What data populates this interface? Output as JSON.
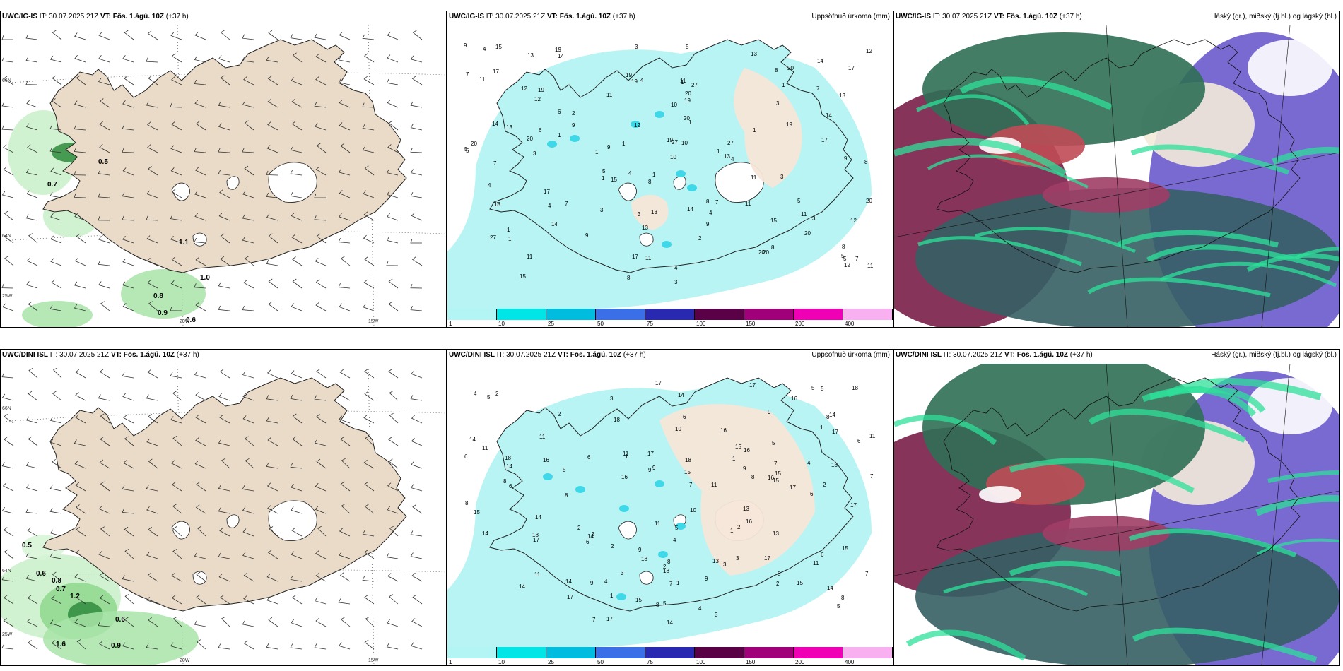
{
  "panels": [
    {
      "model": "UWC/IG-IS",
      "it_label": "IT:",
      "it": "30.07.2025 21Z",
      "vt_label": "VT:",
      "vt": "Fös. 1.ágú. 10Z",
      "lead": "(+37 h)",
      "right_title": ""
    },
    {
      "model": "UWC/IG-IS",
      "it_label": "IT:",
      "it": "30.07.2025 21Z",
      "vt_label": "VT:",
      "vt": "Fös. 1.ágú. 10Z",
      "lead": "(+37 h)",
      "right_title": "Uppsöfnuð úrkoma (mm)"
    },
    {
      "model": "UWC/IG-IS",
      "it_label": "IT:",
      "it": "30.07.2025 21Z",
      "vt_label": "VT:",
      "vt": "Fös. 1.ágú. 10Z",
      "lead": "(+37 h)",
      "right_title": "Háský (gr.), miðský (fj.bl.) og lágský (bl.)"
    },
    {
      "model": "UWC/DINI ISL",
      "it_label": "IT:",
      "it": "30.07.2025 21Z",
      "vt_label": "VT:",
      "vt": "Fös. 1.ágú. 10Z",
      "lead": "(+37 h)",
      "right_title": ""
    },
    {
      "model": "UWC/DINI ISL",
      "it_label": "IT:",
      "it": "30.07.2025 21Z",
      "vt_label": "VT:",
      "vt": "Fös. 1.ágú. 10Z",
      "lead": "(+37 h)",
      "right_title": "Uppsöfnuð úrkoma (mm)"
    },
    {
      "model": "UWC/DINI ISL",
      "it_label": "IT:",
      "it": "30.07.2025 21Z",
      "vt_label": "VT:",
      "vt": "Fös. 1.ágú. 10Z",
      "lead": "(+37 h)",
      "right_title": "Háský (gr.), miðský (fj.bl.) og lágský (bl.)"
    }
  ],
  "colorbar": {
    "labels": [
      "1",
      "10",
      "25",
      "50",
      "75",
      "100",
      "150",
      "200",
      "400"
    ],
    "colors": [
      "#b3f5f5",
      "#00e5e5",
      "#00bde0",
      "#3a6fe8",
      "#2828b0",
      "#5a0046",
      "#a0007a",
      "#f000b4",
      "#f8b0f0"
    ]
  },
  "axis_labels": {
    "lat66": "66N",
    "lat64": "64N",
    "lon25": "25W",
    "lon20": "20W",
    "lon15": "15W"
  },
  "precip_labels_top": [
    "1",
    "2",
    "4",
    "5",
    "7",
    "8",
    "9",
    "11",
    "13",
    "14",
    "15",
    "17",
    "19",
    "20",
    "27",
    "3",
    "6",
    "10",
    "12"
  ],
  "precip_labels_bottom": [
    "1",
    "2",
    "3",
    "4",
    "5",
    "6",
    "7",
    "8",
    "9",
    "10",
    "11",
    "13",
    "14",
    "15",
    "16",
    "17",
    "18"
  ],
  "wind_values_top": [
    "0.5",
    "0.7",
    "1.1",
    "1.0",
    "0.8",
    "0.9",
    "0.6"
  ],
  "wind_values_bottom": [
    "0.5",
    "0.6",
    "0.8",
    "0.7",
    "1.2",
    "1.6",
    "0.9",
    "0.6"
  ]
}
